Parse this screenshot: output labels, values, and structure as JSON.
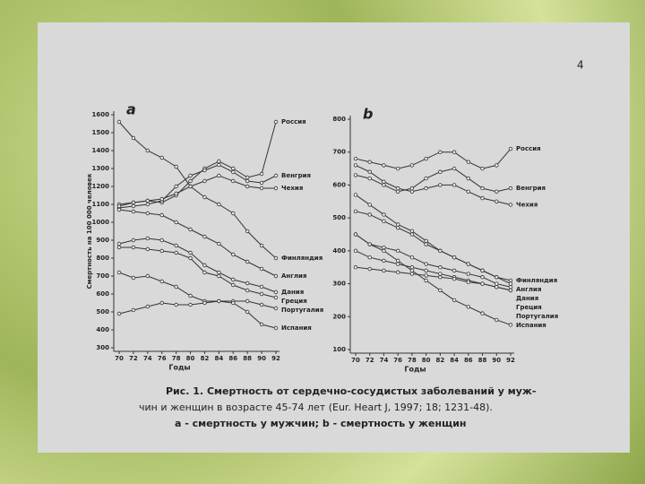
{
  "page_number": "4",
  "caption": [
    "Рис. 1. Смертность от сердечно-сосудистых заболеваний у муж-",
    "чин и женщин в возрасте 45-74 лет (Eur. Heart J, 1997; 18; 1231-48).",
    "a - смертность у мужчин; b - смертность у женщин"
  ],
  "chart_data": [
    {
      "type": "line",
      "title": "a",
      "y_label": "Смертность на 100 000 человек",
      "x_label": "Годы",
      "x": [
        70,
        72,
        74,
        76,
        78,
        80,
        82,
        84,
        86,
        88,
        90,
        92
      ],
      "xlim": [
        70,
        92
      ],
      "xticks": [
        70,
        72,
        74,
        76,
        78,
        80,
        82,
        84,
        86,
        88,
        90,
        92
      ],
      "ylim": [
        300,
        1600
      ],
      "yticks": [
        300,
        400,
        500,
        600,
        700,
        800,
        900,
        1000,
        1100,
        1200,
        1300,
        1400,
        1500,
        1600
      ],
      "series": [
        {
          "name": "Россия",
          "color": "#333333",
          "values": [
            1100,
            1110,
            1120,
            1110,
            1150,
            1230,
            1300,
            1340,
            1300,
            1250,
            1270,
            1560
          ]
        },
        {
          "name": "Венгрия",
          "color": "#333333",
          "values": [
            1080,
            1090,
            1100,
            1120,
            1200,
            1260,
            1290,
            1320,
            1280,
            1230,
            1220,
            1260
          ]
        },
        {
          "name": "Чехия",
          "color": "#333333",
          "values": [
            1090,
            1110,
            1120,
            1130,
            1160,
            1200,
            1230,
            1260,
            1230,
            1200,
            1190,
            1190
          ]
        },
        {
          "name": "Финляндия",
          "color": "#333333",
          "values": [
            1560,
            1470,
            1400,
            1360,
            1310,
            1200,
            1140,
            1100,
            1050,
            950,
            870,
            800
          ]
        },
        {
          "name": "Англия",
          "color": "#333333",
          "values": [
            1070,
            1060,
            1050,
            1040,
            1000,
            960,
            920,
            880,
            820,
            780,
            740,
            700
          ]
        },
        {
          "name": "Дания",
          "color": "#333333",
          "values": [
            880,
            900,
            910,
            900,
            870,
            830,
            760,
            720,
            680,
            660,
            640,
            610
          ]
        },
        {
          "name": "Греция",
          "color": "#333333",
          "values": [
            860,
            860,
            850,
            840,
            830,
            800,
            720,
            700,
            650,
            620,
            600,
            580
          ]
        },
        {
          "name": "Португалия",
          "color": "#333333",
          "values": [
            720,
            690,
            700,
            670,
            640,
            590,
            560,
            560,
            560,
            560,
            540,
            520
          ]
        },
        {
          "name": "Испания",
          "color": "#333333",
          "values": [
            490,
            510,
            530,
            550,
            540,
            540,
            550,
            560,
            550,
            500,
            430,
            410
          ]
        }
      ]
    },
    {
      "type": "line",
      "title": "b",
      "x_label": "Годы",
      "x": [
        70,
        72,
        74,
        76,
        78,
        80,
        82,
        84,
        86,
        88,
        90,
        92
      ],
      "xlim": [
        70,
        92
      ],
      "xticks": [
        70,
        72,
        74,
        76,
        78,
        80,
        82,
        84,
        86,
        88,
        90,
        92
      ],
      "ylim": [
        100,
        800
      ],
      "yticks": [
        100,
        200,
        300,
        400,
        500,
        600,
        700,
        800
      ],
      "series": [
        {
          "name": "Россия",
          "color": "#333333",
          "values": [
            680,
            670,
            660,
            650,
            660,
            680,
            700,
            700,
            670,
            650,
            660,
            710
          ]
        },
        {
          "name": "Венгрия",
          "color": "#333333",
          "values": [
            630,
            620,
            600,
            580,
            590,
            620,
            640,
            650,
            620,
            590,
            580,
            590
          ]
        },
        {
          "name": "Чехия",
          "color": "#333333",
          "values": [
            660,
            640,
            610,
            590,
            580,
            590,
            600,
            600,
            580,
            560,
            550,
            540
          ]
        },
        {
          "name": "Финляндия",
          "color": "#333333",
          "values": [
            570,
            540,
            510,
            480,
            460,
            430,
            400,
            380,
            360,
            340,
            320,
            310
          ]
        },
        {
          "name": "Англия",
          "color": "#333333",
          "values": [
            520,
            510,
            490,
            470,
            450,
            420,
            400,
            380,
            360,
            340,
            320,
            300
          ]
        },
        {
          "name": "Дания",
          "color": "#333333",
          "values": [
            450,
            420,
            410,
            400,
            380,
            360,
            350,
            340,
            330,
            320,
            300,
            290
          ]
        },
        {
          "name": "Греция",
          "color": "#333333",
          "values": [
            400,
            380,
            370,
            360,
            350,
            340,
            330,
            320,
            310,
            300,
            290,
            280
          ]
        },
        {
          "name": "Португалия",
          "color": "#333333",
          "values": [
            350,
            345,
            340,
            335,
            330,
            325,
            320,
            315,
            305,
            300,
            290,
            280
          ]
        },
        {
          "name": "Испания",
          "color": "#333333",
          "values": [
            450,
            420,
            400,
            370,
            340,
            310,
            280,
            250,
            230,
            210,
            190,
            175
          ]
        }
      ]
    }
  ]
}
